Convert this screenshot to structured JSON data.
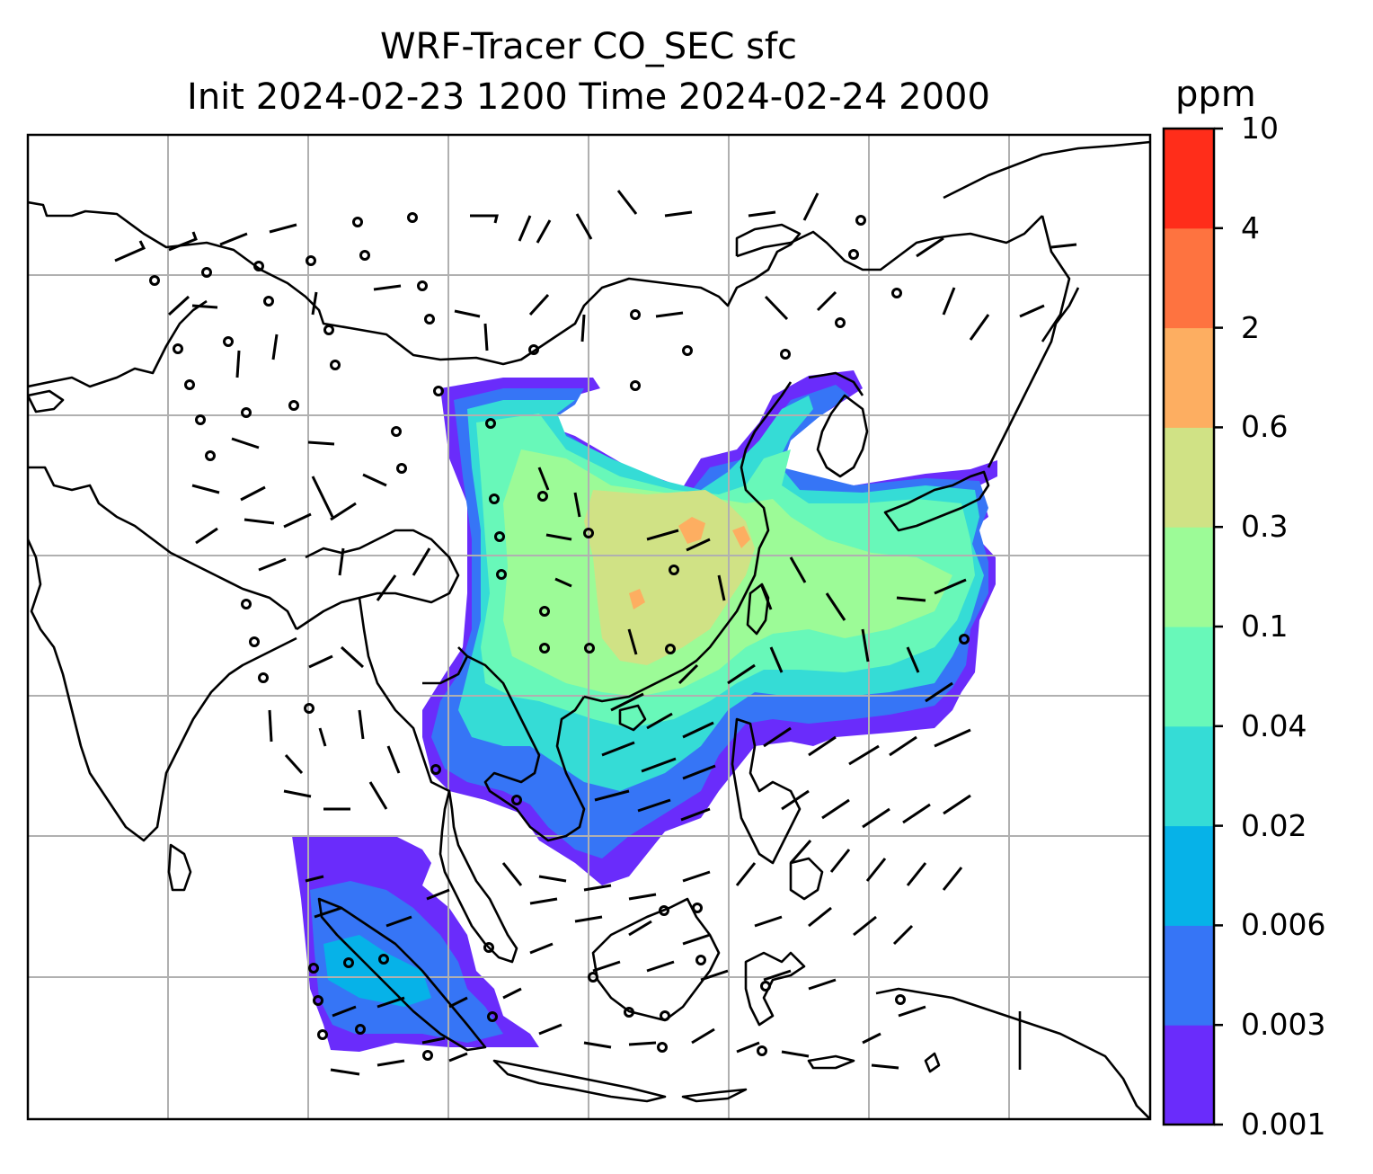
{
  "title": {
    "line1": "WRF-Tracer CO_SEC sfc",
    "line2": "Init 2024-02-23 1200 Time 2024-02-24 2000"
  },
  "colorbar": {
    "unit": "ppm",
    "ticks": [
      "0.001",
      "0.003",
      "0.006",
      "0.02",
      "0.04",
      "0.1",
      "0.3",
      "0.6",
      "2",
      "4",
      "10"
    ],
    "colors": [
      "#6a2cfb",
      "#3675f6",
      "#06b2e8",
      "#35dcd6",
      "#68f8b9",
      "#9cfb97",
      "#d0e285",
      "#fdae61",
      "#fe7340",
      "#ff2d1a"
    ]
  },
  "map": {
    "gridlines": true,
    "field": "CO_SEC surface concentration",
    "wind_barbs": true
  }
}
